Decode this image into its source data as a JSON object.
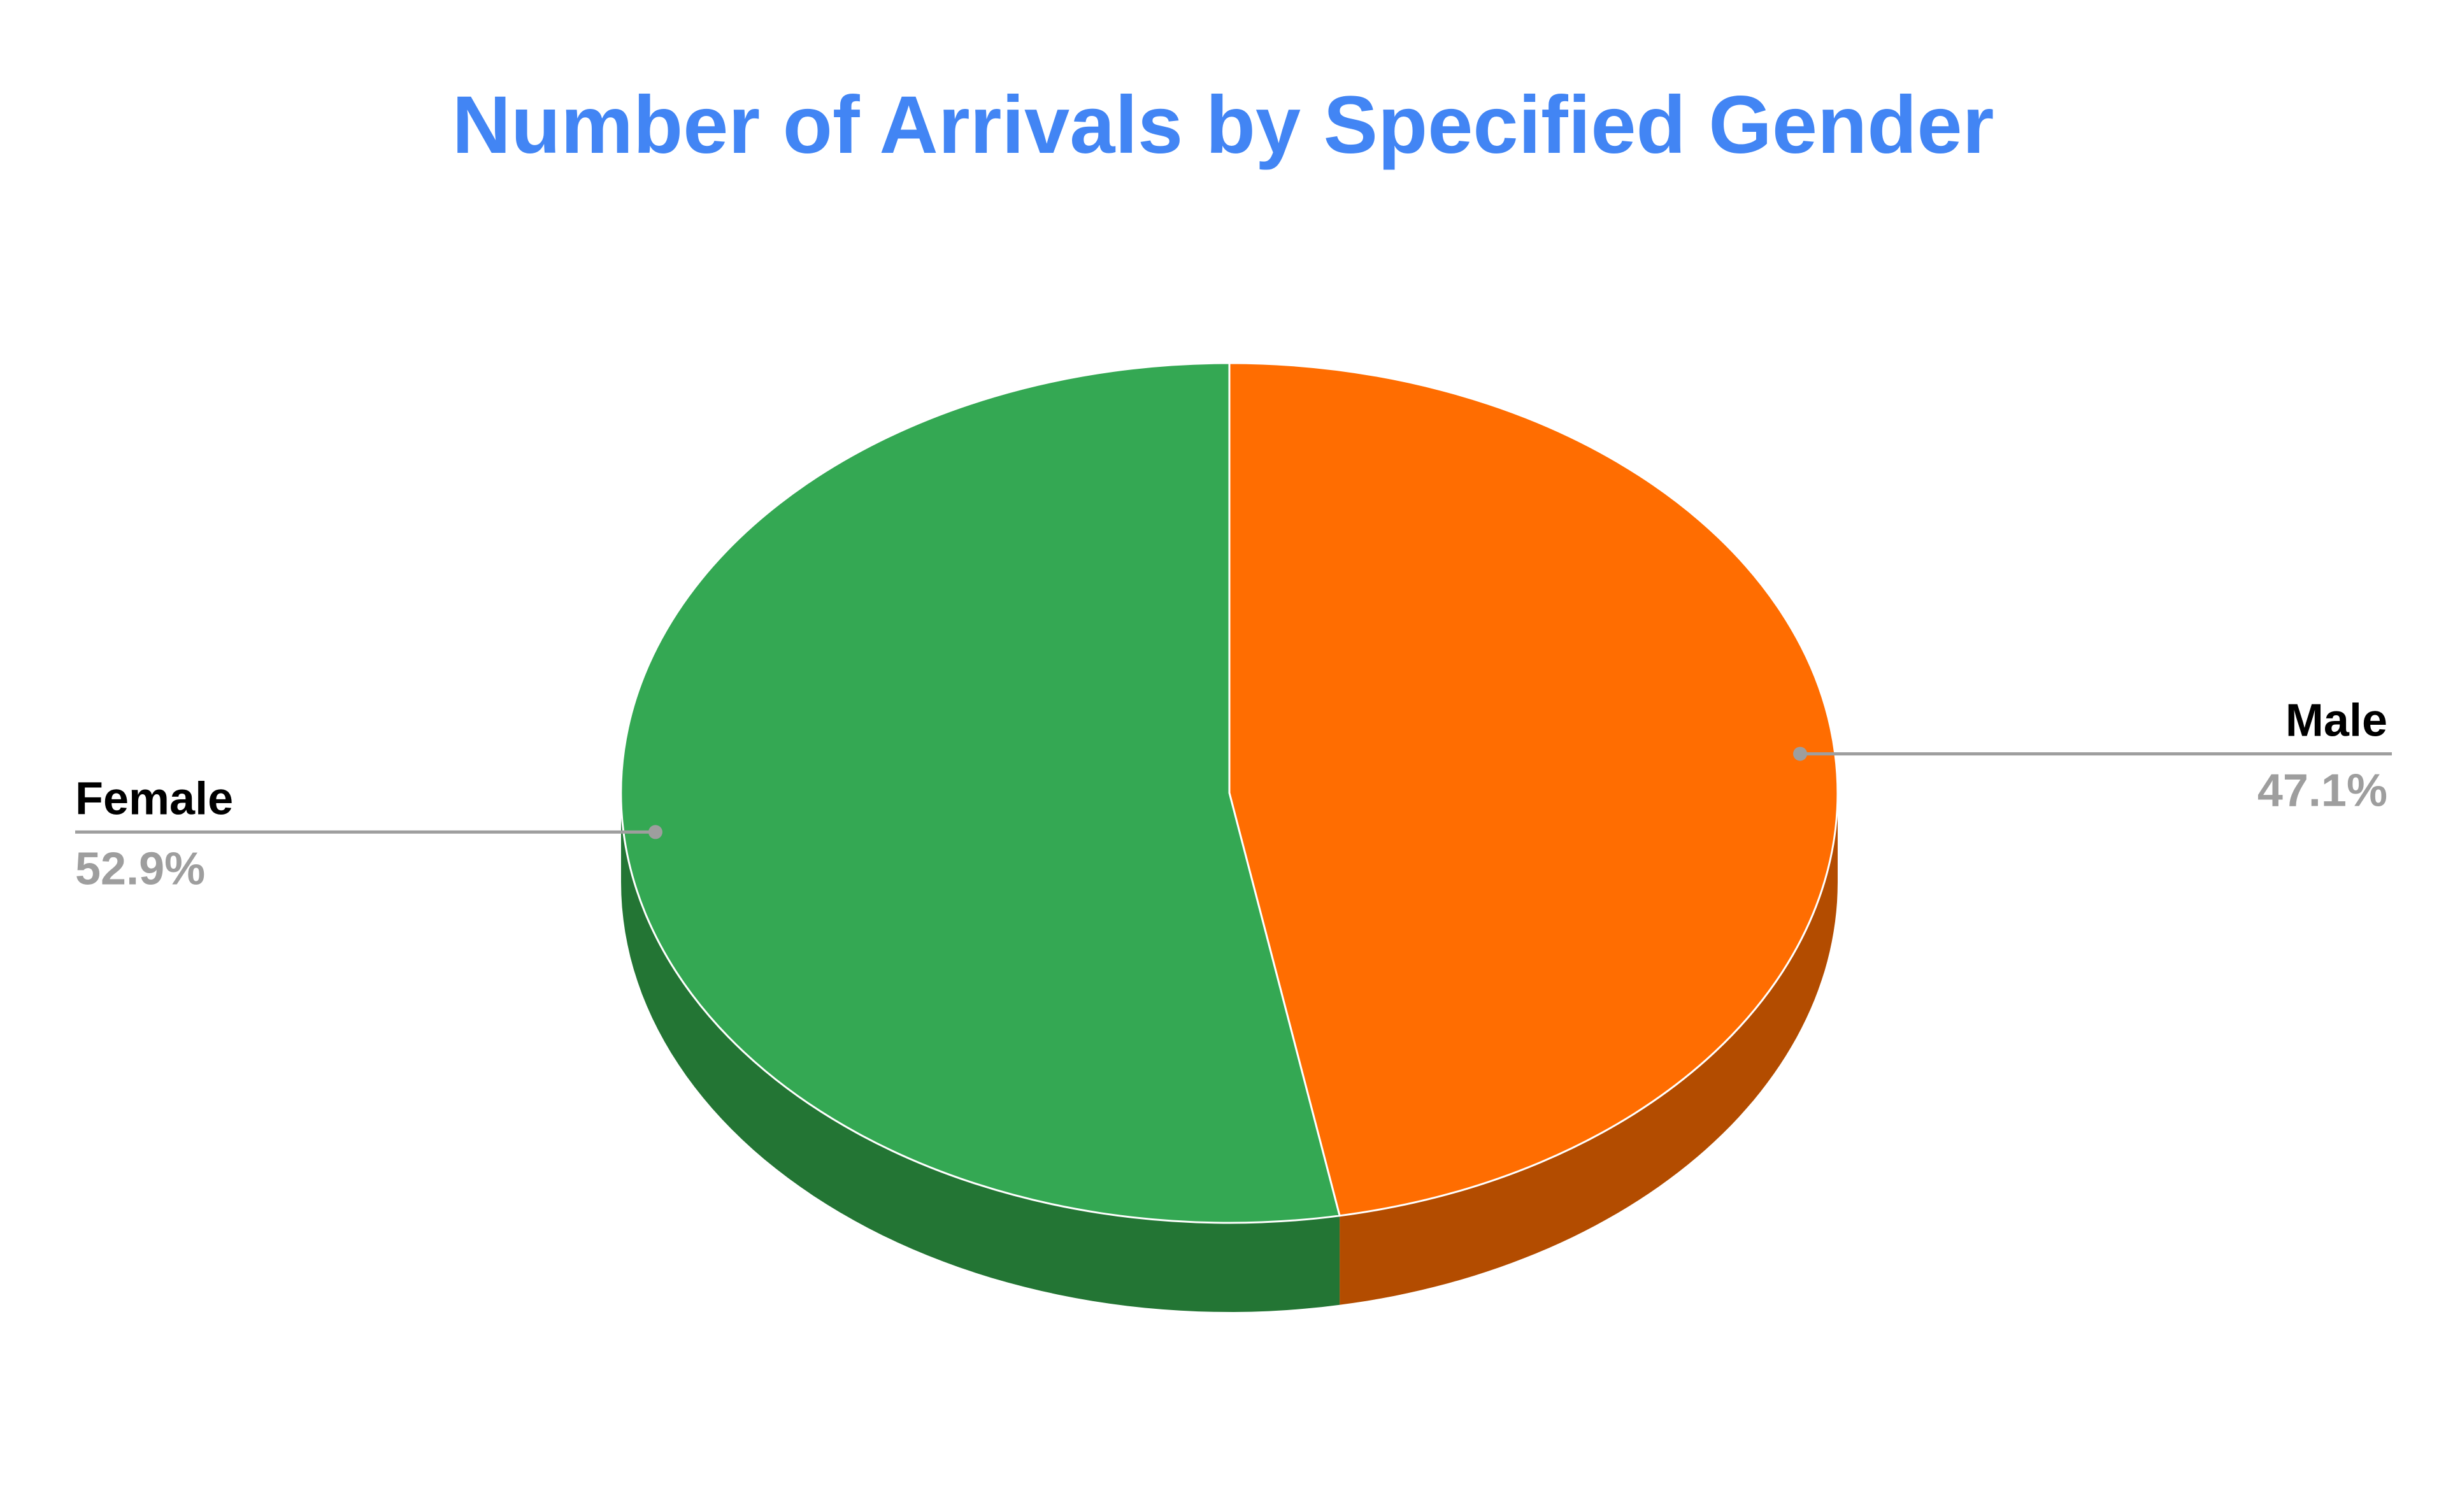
{
  "chart_data": {
    "type": "pie",
    "title": "Number of Arrivals by Specified Gender",
    "style": "3d",
    "legend": "labeled",
    "slices": [
      {
        "label": "Male",
        "percent_label": "47.1%",
        "value": 47.1,
        "color": "#ff6d01",
        "side_color": "#b34c00"
      },
      {
        "label": "Female",
        "percent_label": "52.9%",
        "value": 52.9,
        "color": "#34a853",
        "side_color": "#237534"
      }
    ],
    "title_color": "#4285f4",
    "label_color": "#000000",
    "percent_color": "#9e9e9e",
    "leader_color": "#9e9e9e"
  }
}
